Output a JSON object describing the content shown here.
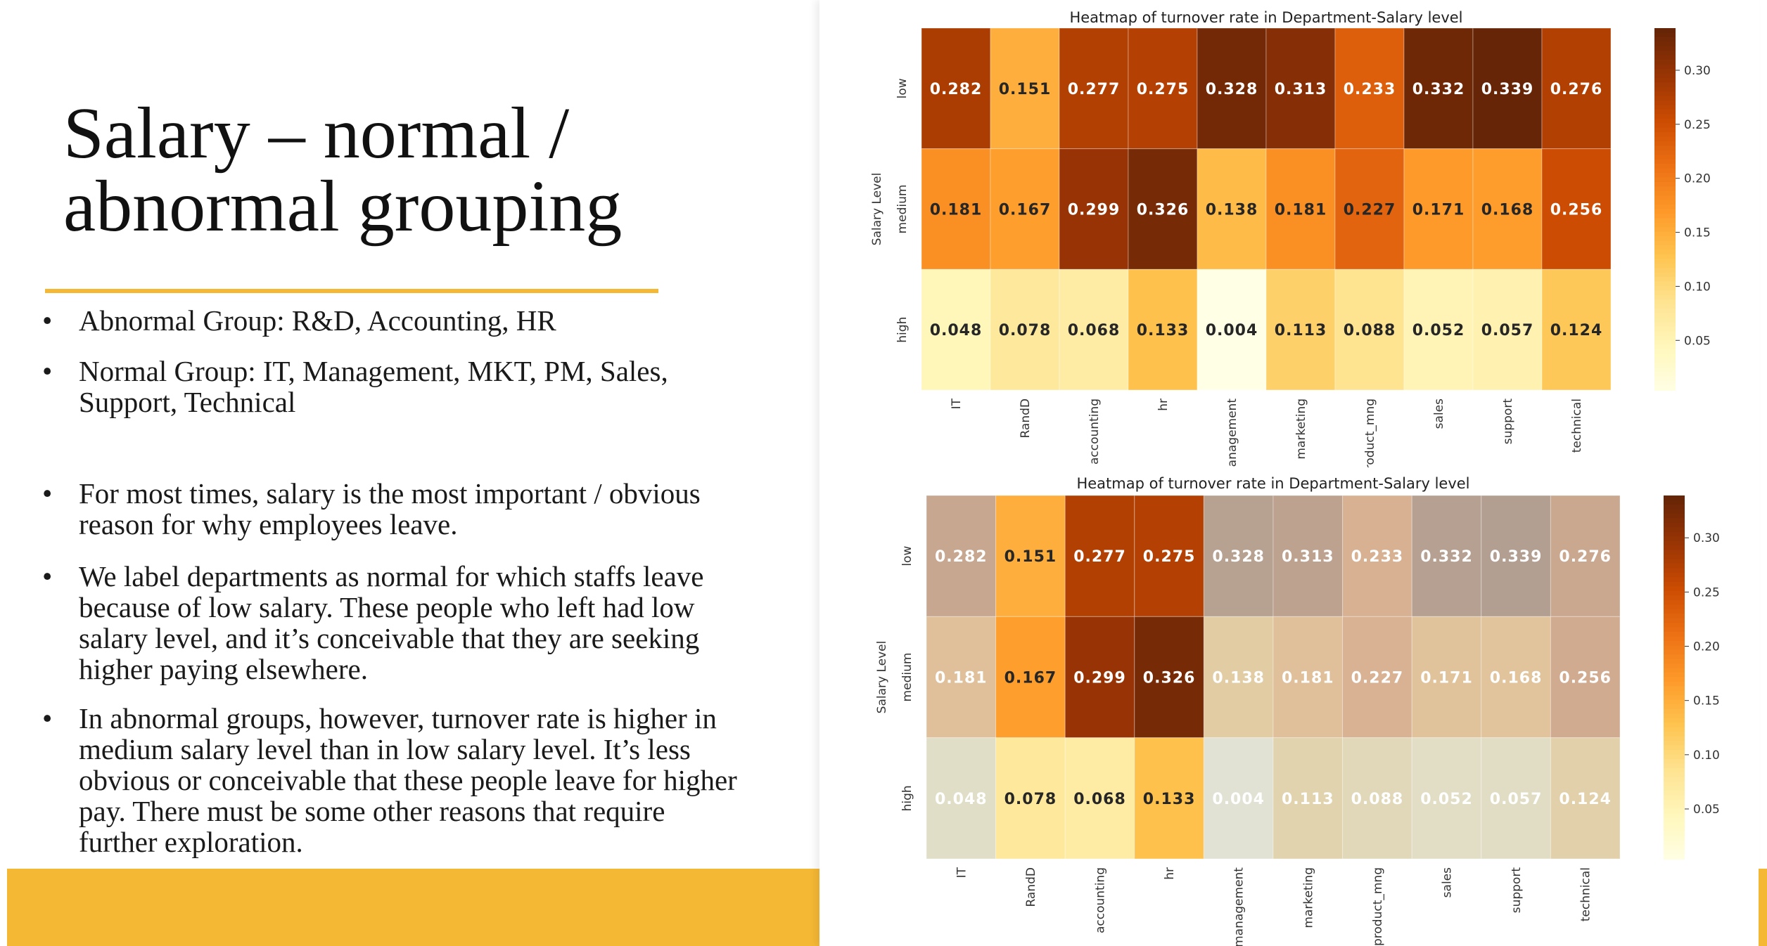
{
  "slide": {
    "title_line1": "Salary – normal /",
    "title_line2": "abnormal grouping",
    "bullets": [
      "Abnormal Group: R&D, Accounting, HR",
      "Normal Group: IT, Management, MKT, PM, Sales, Support, Technical",
      "For most times, salary is the most important / obvious reason for why employees leave.",
      "We label departments as normal for which staffs leave because of low salary. These people who left had low salary level, and it’s conceivable that they are seeking higher paying elsewhere.",
      "In abnormal groups, however, turnover rate is higher in medium salary level than in low salary level. It’s less obvious or conceivable that these people leave for higher pay. There must be some other reasons that require further exploration."
    ],
    "bullet_symbol": "•"
  },
  "colors": {
    "accent": "#f5b835",
    "background": "#ffffff"
  },
  "chart_data": [
    {
      "type": "heatmap",
      "title": "Heatmap of turnover rate in Department-Salary level",
      "ylabel": "Salary Level",
      "xlabel": "",
      "x": [
        "IT",
        "RandD",
        "accounting",
        "hr",
        "management",
        "marketing",
        "product_mng",
        "sales",
        "support",
        "technical"
      ],
      "y": [
        "low",
        "medium",
        "high"
      ],
      "values": [
        [
          0.282,
          0.151,
          0.277,
          0.275,
          0.328,
          0.313,
          0.233,
          0.332,
          0.339,
          0.276
        ],
        [
          0.181,
          0.167,
          0.299,
          0.326,
          0.138,
          0.181,
          0.227,
          0.171,
          0.168,
          0.256
        ],
        [
          0.048,
          0.078,
          0.068,
          0.133,
          0.004,
          0.113,
          0.088,
          0.052,
          0.057,
          0.124
        ]
      ],
      "colormap": "YlOrBr",
      "vmin": 0.004,
      "vmax": 0.339,
      "colorbar_ticks": [
        0.05,
        0.1,
        0.15,
        0.2,
        0.25,
        0.3
      ],
      "colorbar_tick_labels": [
        "0.05",
        "0.10",
        "0.15",
        "0.20",
        "0.25",
        "0.30"
      ],
      "highlighted_columns": []
    },
    {
      "type": "heatmap",
      "title": "Heatmap of turnover rate in Department-Salary level",
      "ylabel": "Salary Level",
      "xlabel": "",
      "x": [
        "IT",
        "RandD",
        "accounting",
        "hr",
        "management",
        "marketing",
        "product_mng",
        "sales",
        "support",
        "technical"
      ],
      "y": [
        "low",
        "medium",
        "high"
      ],
      "values": [
        [
          0.282,
          0.151,
          0.277,
          0.275,
          0.328,
          0.313,
          0.233,
          0.332,
          0.339,
          0.276
        ],
        [
          0.181,
          0.167,
          0.299,
          0.326,
          0.138,
          0.181,
          0.227,
          0.171,
          0.168,
          0.256
        ],
        [
          0.048,
          0.078,
          0.068,
          0.133,
          0.004,
          0.113,
          0.088,
          0.052,
          0.057,
          0.124
        ]
      ],
      "colormap": "YlOrBr",
      "vmin": 0.004,
      "vmax": 0.339,
      "colorbar_ticks": [
        0.05,
        0.1,
        0.15,
        0.2,
        0.25,
        0.3
      ],
      "colorbar_tick_labels": [
        "0.05",
        "0.10",
        "0.15",
        "0.20",
        "0.25",
        "0.30"
      ],
      "highlighted_columns": [
        "RandD",
        "accounting",
        "hr"
      ],
      "dim_color": "#d4d4cc"
    }
  ]
}
